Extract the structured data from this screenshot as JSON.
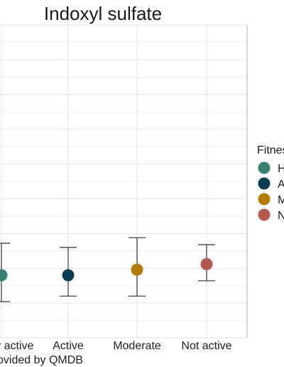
{
  "chart_data": {
    "type": "scatter",
    "title": "Indoxyl sulfate",
    "xlabel": "",
    "ylabel": "",
    "categories": [
      "Highly active",
      "Active",
      "Moderate",
      "Not active"
    ],
    "points": [
      {
        "category": "Highly active",
        "mean": 0.8,
        "lower": 0.04,
        "upper": 1.72
      },
      {
        "category": "Active",
        "mean": 0.8,
        "lower": 0.2,
        "upper": 1.6
      },
      {
        "category": "Moderate",
        "mean": 0.96,
        "lower": 0.2,
        "upper": 1.88
      },
      {
        "category": "Not active",
        "mean": 1.12,
        "lower": 0.64,
        "upper": 1.68
      }
    ],
    "ylim": [
      -1.0,
      8.0
    ],
    "grid": true,
    "legend": {
      "title": "Fitness",
      "placement": "right",
      "entries": [
        "Highly active",
        "Active",
        "Moderate",
        "Not active"
      ]
    },
    "caption": "Provided by QMDB"
  },
  "colors": {
    "Highly active": "#3a7d73",
    "Active": "#0b3d52",
    "Moderate": "#b27a06",
    "Not active": "#b35a4f",
    "errorbar": "#333333",
    "grid": "#e6e6e6",
    "panel_border": "#b3b3b3"
  }
}
